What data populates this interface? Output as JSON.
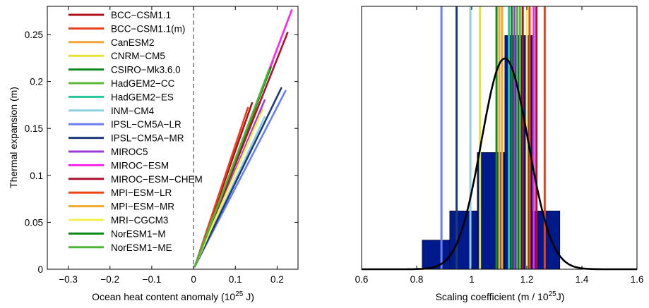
{
  "chart_data": [
    {
      "type": "line",
      "xlabel_main": "Ocean heat content anomaly (10",
      "xlabel_sup": "25",
      "xlabel_end": " J)",
      "ylabel": "Thermal expansion (m)",
      "xlim": [
        -0.35,
        0.25
      ],
      "ylim": [
        0,
        0.28
      ],
      "xticks": [
        -0.3,
        -0.2,
        -0.1,
        0,
        0.1,
        0.2
      ],
      "xtick_labels": [
        "−0.3",
        "−0.2",
        "−0.1",
        "0",
        "0.1",
        "0.2"
      ],
      "yticks": [
        0,
        0.05,
        0.1,
        0.15,
        0.2,
        0.25
      ],
      "ytick_labels": [
        "0",
        "0.05",
        "0.1",
        "0.15",
        "0.2",
        "0.25"
      ],
      "zero_line": {
        "x": 0,
        "style": "dashed"
      },
      "legend_position": "top-left",
      "series": [
        {
          "name": "BCC−CSM1.1",
          "color": "#b0101c",
          "x": [
            0.003,
            0.14
          ],
          "y": [
            0.003,
            0.177
          ]
        },
        {
          "name": "BCC−CSM1.1(m)",
          "color": "#e8401e",
          "x": [
            0.003,
            0.13
          ],
          "y": [
            0.003,
            0.172
          ]
        },
        {
          "name": "CanESM2",
          "color": "#f4a533",
          "x": [
            0.003,
            0.15
          ],
          "y": [
            0.003,
            0.172
          ]
        },
        {
          "name": "CNRM−CM5",
          "color": "#e3e332",
          "x": [
            0.003,
            0.165
          ],
          "y": [
            0.003,
            0.17
          ]
        },
        {
          "name": "CSIRO−Mk3.6.0",
          "color": "#0e8a1e",
          "x": [
            0.003,
            0.19
          ],
          "y": [
            0.003,
            0.222
          ]
        },
        {
          "name": "HadGEM2−CC",
          "color": "#5ab83a",
          "x": [
            0.003,
            0.175
          ],
          "y": [
            0.003,
            0.205
          ]
        },
        {
          "name": "HadGEM2−ES",
          "color": "#25c79a",
          "x": [
            0.003,
            0.18
          ],
          "y": [
            0.003,
            0.21
          ]
        },
        {
          "name": "INM−CM4",
          "color": "#8ecfe0",
          "x": [
            0.003,
            0.17
          ],
          "y": [
            0.003,
            0.162
          ]
        },
        {
          "name": "IPSL−CM5A−LR",
          "color": "#6a7ff0",
          "x": [
            0.003,
            0.22
          ],
          "y": [
            0.003,
            0.19
          ]
        },
        {
          "name": "IPSL−CM5A−MR",
          "color": "#1f3a78",
          "x": [
            0.003,
            0.21
          ],
          "y": [
            0.003,
            0.193
          ]
        },
        {
          "name": "MIROC5",
          "color": "#9b3ad6",
          "x": [
            0.003,
            0.17
          ],
          "y": [
            0.003,
            0.18
          ]
        },
        {
          "name": "MIROC−ESM",
          "color": "#ff22ee",
          "x": [
            0.003,
            0.235
          ],
          "y": [
            0.003,
            0.276
          ]
        },
        {
          "name": "MIROC−ESM−CHEM",
          "color": "#a8102e",
          "x": [
            0.003,
            0.225
          ],
          "y": [
            0.003,
            0.252
          ]
        },
        {
          "name": "MPI−ESM−LR",
          "color": "#ee4512",
          "x": [
            0.003,
            0.155
          ],
          "y": [
            0.003,
            0.18
          ]
        },
        {
          "name": "MPI−ESM−MR",
          "color": "#f0aa30",
          "x": [
            0.003,
            0.15
          ],
          "y": [
            0.003,
            0.175
          ]
        },
        {
          "name": "MRI−CGCM3",
          "color": "#f0f050",
          "x": [
            0.003,
            0.16
          ],
          "y": [
            0.003,
            0.165
          ]
        },
        {
          "name": "NorESM1−M",
          "color": "#0a8a14",
          "x": [
            0.003,
            0.185
          ],
          "y": [
            0.003,
            0.215
          ]
        },
        {
          "name": "NorESM1−ME",
          "color": "#4fb63a",
          "x": [
            0.003,
            0.18
          ],
          "y": [
            0.003,
            0.212
          ]
        }
      ]
    },
    {
      "type": "bar",
      "xlabel_main": "Scaling coefficient (m / 10",
      "xlabel_sup": "25",
      "xlabel_end": "J)",
      "xlim": [
        0.6,
        1.6
      ],
      "ylim": [
        0,
        1
      ],
      "xticks": [
        0.6,
        0.8,
        1.0,
        1.2,
        1.4,
        1.6
      ],
      "xtick_labels": [
        "0.6",
        "0.8",
        "1",
        "1.2",
        "1.4",
        "1.6"
      ],
      "histogram": {
        "color": "#001a8c",
        "bins": [
          {
            "x0": 0.82,
            "x1": 0.92,
            "height": 0.111
          },
          {
            "x0": 0.92,
            "x1": 1.02,
            "height": 0.222
          },
          {
            "x0": 1.02,
            "x1": 1.12,
            "height": 0.444
          },
          {
            "x0": 1.12,
            "x1": 1.22,
            "height": 0.889
          },
          {
            "x0": 1.22,
            "x1": 1.32,
            "height": 0.222
          }
        ]
      },
      "normal_curve": {
        "mean": 1.12,
        "sd": 0.085,
        "peak": 0.802,
        "color": "#000000"
      },
      "model_lines": [
        {
          "value": 0.89,
          "color": "#6a7ff0"
        },
        {
          "value": 0.945,
          "color": "#1f3a78"
        },
        {
          "value": 0.995,
          "color": "#8ecfe0"
        },
        {
          "value": 1.03,
          "color": "#e3e332"
        },
        {
          "value": 1.09,
          "color": "#0e8a1e"
        },
        {
          "value": 1.1,
          "color": "#f4a533"
        },
        {
          "value": 1.11,
          "color": "#f0aa30"
        },
        {
          "value": 1.135,
          "color": "#25c79a"
        },
        {
          "value": 1.145,
          "color": "#0a8a14"
        },
        {
          "value": 1.155,
          "color": "#9b3ad6"
        },
        {
          "value": 1.165,
          "color": "#4fb63a"
        },
        {
          "value": 1.175,
          "color": "#5ab83a"
        },
        {
          "value": 1.185,
          "color": "#b0101c"
        },
        {
          "value": 1.2,
          "color": "#f0f050"
        },
        {
          "value": 1.21,
          "color": "#ee4512"
        },
        {
          "value": 1.225,
          "color": "#ff22ee"
        },
        {
          "value": 1.235,
          "color": "#a8102e"
        },
        {
          "value": 1.265,
          "color": "#e8401e"
        }
      ]
    }
  ]
}
